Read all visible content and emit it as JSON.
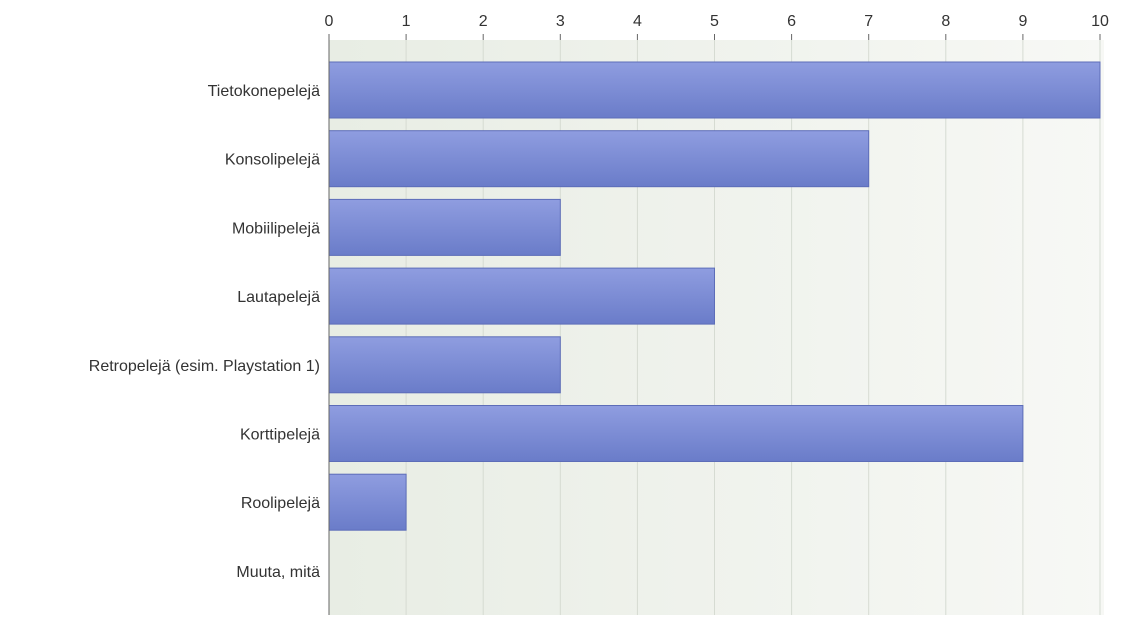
{
  "chart_data": {
    "type": "bar",
    "orientation": "horizontal",
    "title": "",
    "xlabel": "",
    "ylabel": "",
    "categories": [
      "Tietokonepelejä",
      "Konsolipelejä",
      "Mobiilipelejä",
      "Lautapelejä",
      "Retropelejä (esim. Playstation 1)",
      "Korttipelejä",
      "Roolipelejä",
      "Muuta, mitä"
    ],
    "values": [
      10,
      7,
      3,
      5,
      3,
      9,
      1,
      0
    ],
    "xlim": [
      0,
      10
    ],
    "xticks": [
      0,
      1,
      2,
      3,
      4,
      5,
      6,
      7,
      8,
      9,
      10
    ],
    "axis_position": "top",
    "grid": true,
    "legend": "none",
    "colors": {
      "bar_top": "#8f9de0",
      "bar_bottom": "#6a7cc9",
      "bar_stroke": "#5d6db8",
      "plot_bg_left": "#e8ede4",
      "plot_bg_right": "#f7f8f5",
      "grid": "#d6dbd2",
      "axis": "#666666"
    }
  }
}
